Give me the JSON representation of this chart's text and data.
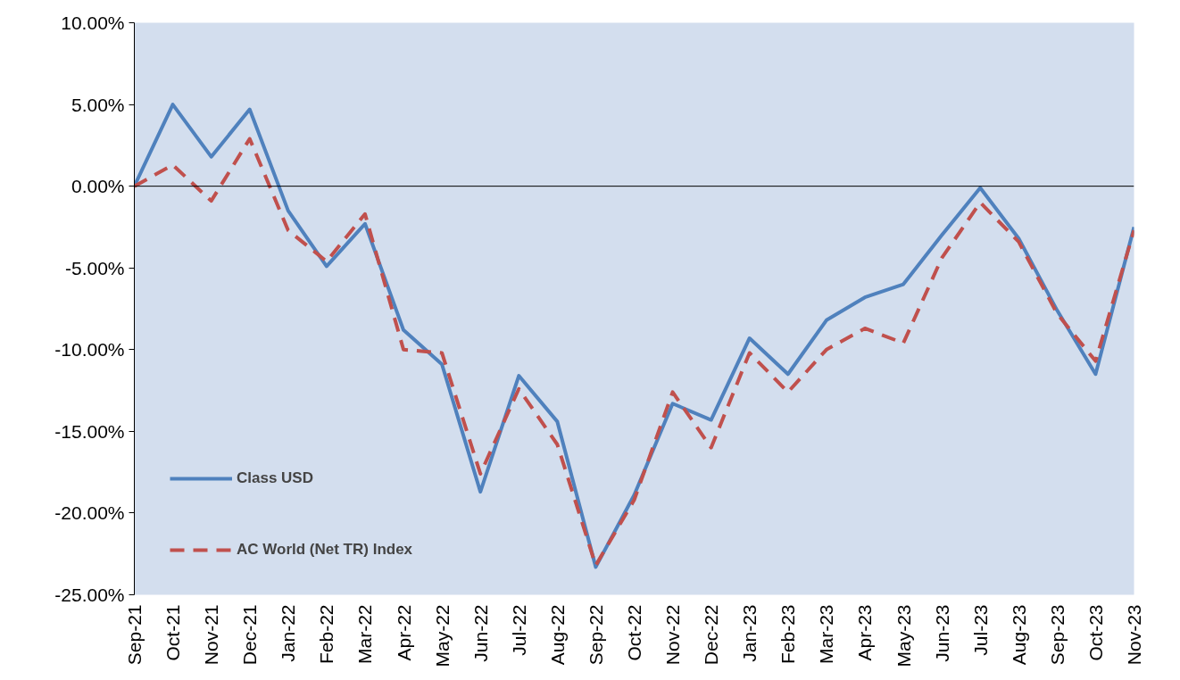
{
  "chart_data": {
    "type": "line",
    "categories": [
      "Sep-21",
      "Oct-21",
      "Nov-21",
      "Dec-21",
      "Jan-22",
      "Feb-22",
      "Mar-22",
      "Apr-22",
      "May-22",
      "Jun-22",
      "Jul-22",
      "Aug-22",
      "Sep-22",
      "Oct-22",
      "Nov-22",
      "Dec-22",
      "Jan-23",
      "Feb-23",
      "Mar-23",
      "Apr-23",
      "May-23",
      "Jun-23",
      "Jul-23",
      "Aug-23",
      "Sep-23",
      "Oct-23",
      "Nov-23"
    ],
    "series": [
      {
        "name": "Class USD",
        "color": "#4f81bd",
        "line_style": "solid",
        "values": [
          0,
          5.0,
          1.8,
          4.7,
          -1.5,
          -4.9,
          -2.3,
          -8.8,
          -10.9,
          -18.7,
          -11.6,
          -14.4,
          -23.3,
          -18.9,
          -13.3,
          -14.3,
          -9.3,
          -11.5,
          -8.2,
          -6.8,
          -6.0,
          -3.0,
          -0.1,
          -3.2,
          -7.6,
          -11.5,
          -2.5
        ]
      },
      {
        "name": "AC World (Net TR) Index",
        "color": "#c0504d",
        "line_style": "dashed",
        "values": [
          0,
          1.3,
          -0.9,
          2.9,
          -2.7,
          -4.6,
          -1.7,
          -10.0,
          -10.2,
          -17.6,
          -12.4,
          -15.8,
          -23.2,
          -19.2,
          -12.6,
          -16.0,
          -10.2,
          -12.6,
          -10.0,
          -8.7,
          -9.6,
          -4.4,
          -1.0,
          -3.4,
          -7.8,
          -10.7,
          -2.7
        ]
      }
    ],
    "ylim": [
      -25,
      10
    ],
    "yticks": [
      {
        "value": -25,
        "label": "-25.00%"
      },
      {
        "value": -20,
        "label": "-20.00%"
      },
      {
        "value": -15,
        "label": "-15.00%"
      },
      {
        "value": -10,
        "label": "-10.00%"
      },
      {
        "value": -5,
        "label": "-5.00%"
      },
      {
        "value": 0,
        "label": "0.00%"
      },
      {
        "value": 5,
        "label": "5.00%"
      },
      {
        "value": 10,
        "label": "10.00%"
      }
    ],
    "grid": false,
    "ref_lines": [
      {
        "axis": "y",
        "value": 0,
        "color": "#000000"
      }
    ],
    "legend": "bottom left"
  }
}
